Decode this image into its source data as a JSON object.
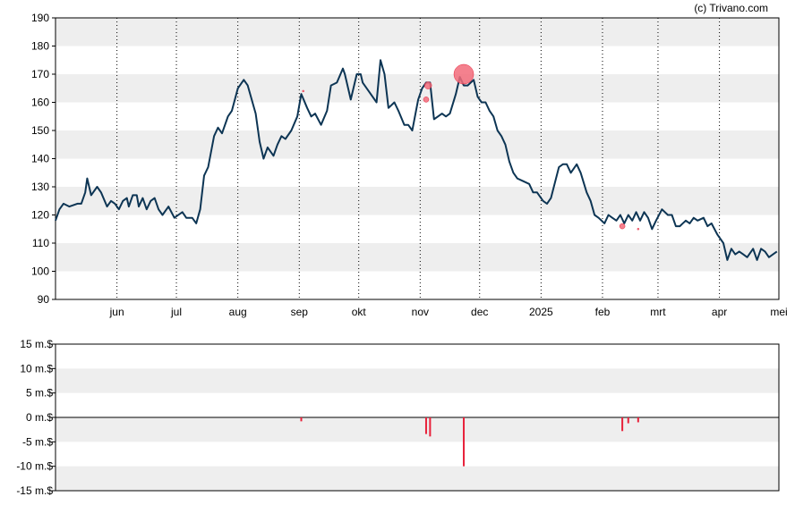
{
  "credit": "(c) Trivano.com",
  "colors": {
    "price_line": "#0d3554",
    "volume_bar": "#e8213a",
    "bubble": "#f26b7a",
    "band": "#eeeeee",
    "grid": "#000000",
    "axis": "#000000"
  },
  "chart_data": [
    {
      "type": "line",
      "series": [
        {
          "values": "see points"
        }
      ],
      "x_ticks": [
        "jun",
        "jul",
        "aug",
        "sep",
        "okt",
        "nov",
        "dec",
        "2025",
        "feb",
        "mrt",
        "apr",
        "mei"
      ],
      "y_ticks": [
        "90",
        "100",
        "110",
        "120",
        "130",
        "140",
        "150",
        "160",
        "170",
        "180",
        "190"
      ],
      "ylim": [
        90,
        190
      ],
      "grid": "vertical dotted at month boundaries, alternating horizontal bands",
      "points": [
        [
          "2024-05-01",
          118
        ],
        [
          "2024-05-03",
          122
        ],
        [
          "2024-05-05",
          124
        ],
        [
          "2024-05-08",
          123
        ],
        [
          "2024-05-12",
          124
        ],
        [
          "2024-05-14",
          124
        ],
        [
          "2024-05-16",
          128
        ],
        [
          "2024-05-17",
          133
        ],
        [
          "2024-05-19",
          127
        ],
        [
          "2024-05-22",
          130
        ],
        [
          "2024-05-24",
          128
        ],
        [
          "2024-05-27",
          123
        ],
        [
          "2024-05-29",
          125
        ],
        [
          "2024-05-31",
          124
        ],
        [
          "2024-06-02",
          122
        ],
        [
          "2024-06-04",
          125
        ],
        [
          "2024-06-06",
          126
        ],
        [
          "2024-06-07",
          123
        ],
        [
          "2024-06-09",
          127
        ],
        [
          "2024-06-11",
          127
        ],
        [
          "2024-06-12",
          123
        ],
        [
          "2024-06-14",
          126
        ],
        [
          "2024-06-16",
          122
        ],
        [
          "2024-06-18",
          125
        ],
        [
          "2024-06-20",
          126
        ],
        [
          "2024-06-22",
          122
        ],
        [
          "2024-06-24",
          120
        ],
        [
          "2024-06-27",
          123
        ],
        [
          "2024-06-30",
          119
        ],
        [
          "2024-07-02",
          120
        ],
        [
          "2024-07-04",
          121
        ],
        [
          "2024-07-06",
          119
        ],
        [
          "2024-07-09",
          119
        ],
        [
          "2024-07-11",
          117
        ],
        [
          "2024-07-13",
          122
        ],
        [
          "2024-07-15",
          134
        ],
        [
          "2024-07-17",
          137
        ],
        [
          "2024-07-20",
          148
        ],
        [
          "2024-07-22",
          151
        ],
        [
          "2024-07-24",
          149
        ],
        [
          "2024-07-27",
          155
        ],
        [
          "2024-07-29",
          157
        ],
        [
          "2024-08-01",
          165
        ],
        [
          "2024-08-04",
          168
        ],
        [
          "2024-08-06",
          166
        ],
        [
          "2024-08-10",
          156
        ],
        [
          "2024-08-12",
          146
        ],
        [
          "2024-08-14",
          140
        ],
        [
          "2024-08-16",
          144
        ],
        [
          "2024-08-19",
          141
        ],
        [
          "2024-08-21",
          145
        ],
        [
          "2024-08-23",
          148
        ],
        [
          "2024-08-25",
          147
        ],
        [
          "2024-08-28",
          150
        ],
        [
          "2024-08-31",
          155
        ],
        [
          "2024-09-02",
          163
        ],
        [
          "2024-09-05",
          158
        ],
        [
          "2024-09-07",
          155
        ],
        [
          "2024-09-09",
          156
        ],
        [
          "2024-09-12",
          152
        ],
        [
          "2024-09-15",
          157
        ],
        [
          "2024-09-17",
          166
        ],
        [
          "2024-09-20",
          167
        ],
        [
          "2024-09-23",
          172
        ],
        [
          "2024-09-24",
          170
        ],
        [
          "2024-09-27",
          161
        ],
        [
          "2024-09-30",
          170
        ],
        [
          "2024-10-02",
          170
        ],
        [
          "2024-10-03",
          167
        ],
        [
          "2024-10-06",
          164
        ],
        [
          "2024-10-10",
          160
        ],
        [
          "2024-10-12",
          175
        ],
        [
          "2024-10-14",
          170
        ],
        [
          "2024-10-16",
          158
        ],
        [
          "2024-10-19",
          160
        ],
        [
          "2024-10-21",
          157
        ],
        [
          "2024-10-24",
          152
        ],
        [
          "2024-10-26",
          152
        ],
        [
          "2024-10-28",
          150
        ],
        [
          "2024-10-31",
          161
        ],
        [
          "2024-11-02",
          165
        ],
        [
          "2024-11-04",
          167
        ],
        [
          "2024-11-06",
          167
        ],
        [
          "2024-11-08",
          154
        ],
        [
          "2024-11-10",
          155
        ],
        [
          "2024-11-12",
          156
        ],
        [
          "2024-11-14",
          155
        ],
        [
          "2024-11-16",
          156
        ],
        [
          "2024-11-19",
          163
        ],
        [
          "2024-11-21",
          169
        ],
        [
          "2024-11-23",
          166
        ],
        [
          "2024-11-25",
          166
        ],
        [
          "2024-11-28",
          168
        ],
        [
          "2024-11-30",
          162
        ],
        [
          "2024-12-02",
          160
        ],
        [
          "2024-12-04",
          160
        ],
        [
          "2024-12-06",
          157
        ],
        [
          "2024-12-08",
          155
        ],
        [
          "2024-12-10",
          150
        ],
        [
          "2024-12-12",
          148
        ],
        [
          "2024-12-14",
          145
        ],
        [
          "2024-12-16",
          139
        ],
        [
          "2024-12-18",
          135
        ],
        [
          "2024-12-20",
          133
        ],
        [
          "2024-12-23",
          132
        ],
        [
          "2024-12-26",
          131
        ],
        [
          "2024-12-28",
          128
        ],
        [
          "2024-12-30",
          128
        ],
        [
          "2025-01-02",
          125
        ],
        [
          "2025-01-04",
          124
        ],
        [
          "2025-01-06",
          126
        ],
        [
          "2025-01-10",
          137
        ],
        [
          "2025-01-12",
          138
        ],
        [
          "2025-01-14",
          138
        ],
        [
          "2025-01-16",
          135
        ],
        [
          "2025-01-19",
          138
        ],
        [
          "2025-01-21",
          135
        ],
        [
          "2025-01-24",
          128
        ],
        [
          "2025-01-26",
          125
        ],
        [
          "2025-01-28",
          120
        ],
        [
          "2025-01-30",
          119
        ],
        [
          "2025-02-02",
          117
        ],
        [
          "2025-02-04",
          120
        ],
        [
          "2025-02-06",
          119
        ],
        [
          "2025-02-08",
          118
        ],
        [
          "2025-02-10",
          120
        ],
        [
          "2025-02-12",
          117
        ],
        [
          "2025-02-14",
          120
        ],
        [
          "2025-02-16",
          118
        ],
        [
          "2025-02-18",
          121
        ],
        [
          "2025-02-20",
          118
        ],
        [
          "2025-02-22",
          121
        ],
        [
          "2025-02-24",
          119
        ],
        [
          "2025-02-26",
          115
        ],
        [
          "2025-02-28",
          118
        ],
        [
          "2025-03-03",
          122
        ],
        [
          "2025-03-06",
          120
        ],
        [
          "2025-03-08",
          120
        ],
        [
          "2025-03-10",
          116
        ],
        [
          "2025-03-12",
          116
        ],
        [
          "2025-03-15",
          118
        ],
        [
          "2025-03-17",
          117
        ],
        [
          "2025-03-19",
          119
        ],
        [
          "2025-03-21",
          118
        ],
        [
          "2025-03-24",
          119
        ],
        [
          "2025-03-26",
          116
        ],
        [
          "2025-03-28",
          117
        ],
        [
          "2025-03-31",
          113
        ],
        [
          "2025-04-03",
          110
        ],
        [
          "2025-04-05",
          104
        ],
        [
          "2025-04-07",
          108
        ],
        [
          "2025-04-09",
          106
        ],
        [
          "2025-04-11",
          107
        ],
        [
          "2025-04-13",
          106
        ],
        [
          "2025-04-15",
          105
        ],
        [
          "2025-04-18",
          108
        ],
        [
          "2025-04-20",
          104
        ],
        [
          "2025-04-22",
          108
        ],
        [
          "2025-04-24",
          107
        ],
        [
          "2025-04-26",
          105
        ],
        [
          "2025-04-28",
          106
        ],
        [
          "2025-04-30",
          107
        ]
      ],
      "bubbles": [
        {
          "x": "2024-09-03",
          "y": 164,
          "size": 1
        },
        {
          "x": "2024-11-04",
          "y": 161,
          "size": 3
        },
        {
          "x": "2024-11-05",
          "y": 166,
          "size": 4
        },
        {
          "x": "2024-11-23",
          "y": 170,
          "size": 11
        },
        {
          "x": "2025-02-11",
          "y": 116,
          "size": 3
        },
        {
          "x": "2025-02-19",
          "y": 115,
          "size": 1
        }
      ]
    },
    {
      "type": "bar",
      "series": [
        {
          "values": "see bars"
        }
      ],
      "y_ticks": [
        "15 m.$",
        "10 m.$",
        "5 m.$",
        "0 m.$",
        "-5 m.$",
        "-10 m.$",
        "-15 m.$"
      ],
      "ylim": [
        -15,
        15
      ],
      "bars": [
        {
          "x": "2024-09-02",
          "value": -0.8
        },
        {
          "x": "2024-11-04",
          "value": -3.4
        },
        {
          "x": "2024-11-06",
          "value": -3.9
        },
        {
          "x": "2024-11-23",
          "value": -10
        },
        {
          "x": "2025-02-11",
          "value": -2.8
        },
        {
          "x": "2025-02-14",
          "value": -1.2
        },
        {
          "x": "2025-02-19",
          "value": -1.0
        }
      ]
    }
  ]
}
